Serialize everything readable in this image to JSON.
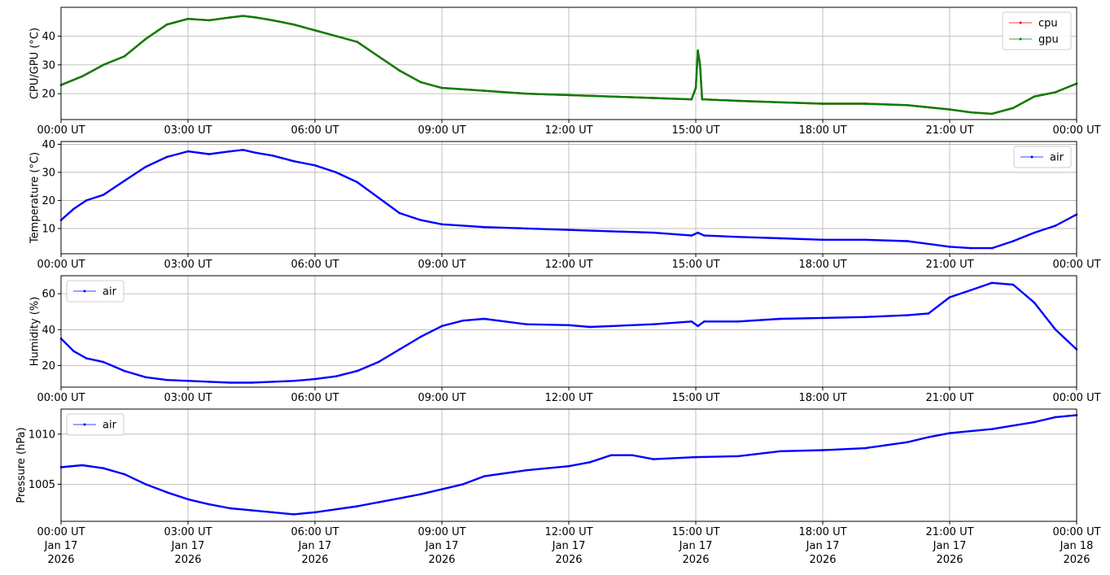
{
  "chart_data": [
    {
      "type": "line",
      "ylabel": "CPU/GPU (°C)",
      "ylim": [
        11,
        50
      ],
      "yticks": [
        20,
        30,
        40
      ],
      "xticks": [
        "00:00 UT",
        "03:00 UT",
        "06:00 UT",
        "09:00 UT",
        "12:00 UT",
        "15:00 UT",
        "18:00 UT",
        "21:00 UT",
        "00:00 UT"
      ],
      "xlim_hours": [
        0,
        24
      ],
      "grid": true,
      "legend_position": "top-right",
      "series": [
        {
          "name": "cpu",
          "color": "#ff0000",
          "x_hours": [
            0,
            0.5,
            1,
            1.5,
            2,
            2.5,
            3,
            3.5,
            4,
            4.3,
            4.6,
            5,
            5.5,
            6,
            6.5,
            7,
            7.5,
            8,
            8.5,
            9,
            10,
            11,
            12,
            13,
            14,
            14.9,
            15.0,
            15.05,
            15.1,
            15.15,
            15.2,
            16,
            17,
            18,
            19,
            20,
            21,
            21.5,
            22,
            22.5,
            23,
            23.5,
            24
          ],
          "values": [
            23,
            26,
            30,
            33,
            39,
            44,
            46,
            45.5,
            46.5,
            47,
            46.5,
            45.5,
            44,
            42,
            40,
            38,
            33,
            28,
            24,
            22,
            21,
            20,
            19.5,
            19,
            18.5,
            18,
            22,
            35,
            30,
            18,
            18,
            17.5,
            17,
            16.5,
            16.5,
            16,
            14.5,
            13.5,
            13,
            15,
            19,
            20.5,
            23.5
          ]
        },
        {
          "name": "gpu",
          "color": "#008000",
          "x_hours": [
            0,
            0.5,
            1,
            1.5,
            2,
            2.5,
            3,
            3.5,
            4,
            4.3,
            4.6,
            5,
            5.5,
            6,
            6.5,
            7,
            7.5,
            8,
            8.5,
            9,
            10,
            11,
            12,
            13,
            14,
            14.9,
            15.0,
            15.05,
            15.1,
            15.15,
            15.2,
            16,
            17,
            18,
            19,
            20,
            21,
            21.5,
            22,
            22.5,
            23,
            23.5,
            24
          ],
          "values": [
            23,
            26,
            30,
            33,
            39,
            44,
            46,
            45.5,
            46.5,
            47,
            46.5,
            45.5,
            44,
            42,
            40,
            38,
            33,
            28,
            24,
            22,
            21,
            20,
            19.5,
            19,
            18.5,
            18,
            22,
            35,
            30,
            18,
            18,
            17.5,
            17,
            16.5,
            16.5,
            16,
            14.5,
            13.5,
            13,
            15,
            19,
            20.5,
            23.5
          ]
        }
      ]
    },
    {
      "type": "line",
      "ylabel": "Temperature (°C)",
      "ylim": [
        1,
        41
      ],
      "yticks": [
        10,
        20,
        30,
        40
      ],
      "xticks": [
        "00:00 UT",
        "03:00 UT",
        "06:00 UT",
        "09:00 UT",
        "12:00 UT",
        "15:00 UT",
        "18:00 UT",
        "21:00 UT",
        "00:00 UT"
      ],
      "xlim_hours": [
        0,
        24
      ],
      "grid": true,
      "legend_position": "top-right",
      "series": [
        {
          "name": "air",
          "color": "#0000ff",
          "x_hours": [
            0,
            0.3,
            0.6,
            1,
            1.5,
            2,
            2.5,
            3,
            3.5,
            4,
            4.3,
            4.6,
            5,
            5.5,
            6,
            6.5,
            7,
            7.5,
            8,
            8.5,
            9,
            10,
            11,
            12,
            13,
            14,
            14.9,
            15.05,
            15.2,
            16,
            17,
            18,
            19,
            20,
            21,
            21.5,
            22,
            22.5,
            23,
            23.5,
            24
          ],
          "values": [
            13,
            17,
            20,
            22,
            27,
            32,
            35.5,
            37.5,
            36.5,
            37.5,
            38,
            37,
            36,
            34,
            32.5,
            30,
            26.5,
            21,
            15.5,
            13,
            11.5,
            10.5,
            10,
            9.5,
            9,
            8.5,
            7.5,
            8.5,
            7.5,
            7,
            6.5,
            6,
            6,
            5.5,
            3.5,
            3,
            3,
            5.5,
            8.5,
            11,
            15
          ]
        }
      ]
    },
    {
      "type": "line",
      "ylabel": "Humidity (%)",
      "ylim": [
        8,
        70
      ],
      "yticks": [
        20,
        40,
        60
      ],
      "xticks": [
        "00:00 UT",
        "03:00 UT",
        "06:00 UT",
        "09:00 UT",
        "12:00 UT",
        "15:00 UT",
        "18:00 UT",
        "21:00 UT",
        "00:00 UT"
      ],
      "xlim_hours": [
        0,
        24
      ],
      "grid": true,
      "legend_position": "top-left",
      "series": [
        {
          "name": "air",
          "color": "#0000ff",
          "x_hours": [
            0,
            0.3,
            0.6,
            1,
            1.5,
            2,
            2.5,
            3,
            3.5,
            4,
            4.5,
            5,
            5.5,
            6,
            6.5,
            7,
            7.5,
            8,
            8.5,
            9,
            9.5,
            10,
            11,
            12,
            12.5,
            13,
            14,
            14.9,
            15.05,
            15.2,
            16,
            17,
            18,
            19,
            20,
            20.5,
            21,
            21.5,
            22,
            22.5,
            23,
            23.5,
            24
          ],
          "values": [
            35,
            28,
            24,
            22,
            17,
            13.5,
            12,
            11.5,
            11,
            10.5,
            10.5,
            11,
            11.5,
            12.5,
            14,
            17,
            22,
            29,
            36,
            42,
            45,
            46,
            43,
            42.5,
            41.5,
            42,
            43,
            44.5,
            42,
            44.5,
            44.5,
            46,
            46.5,
            47,
            48,
            49,
            58,
            62,
            66,
            65,
            55,
            40,
            29
          ]
        }
      ]
    },
    {
      "type": "line",
      "ylabel": "Pressure (hPa)",
      "ylim": [
        1001.3,
        1012.5
      ],
      "yticks": [
        1005,
        1010
      ],
      "xticks": [
        "00:00 UT",
        "03:00 UT",
        "06:00 UT",
        "09:00 UT",
        "12:00 UT",
        "15:00 UT",
        "18:00 UT",
        "21:00 UT",
        "00:00 UT"
      ],
      "xtick_dates": [
        "Jan 17",
        "Jan 17",
        "Jan 17",
        "Jan 17",
        "Jan 17",
        "Jan 17",
        "Jan 17",
        "Jan 17",
        "Jan 18"
      ],
      "xtick_years": [
        "2026",
        "2026",
        "2026",
        "2026",
        "2026",
        "2026",
        "2026",
        "2026",
        "2026"
      ],
      "xlim_hours": [
        0,
        24
      ],
      "grid": true,
      "legend_position": "top-left",
      "series": [
        {
          "name": "air",
          "color": "#0000ff",
          "x_hours": [
            0,
            0.5,
            1,
            1.5,
            2,
            2.5,
            3,
            3.5,
            4,
            4.5,
            5,
            5.5,
            6,
            6.5,
            7,
            7.5,
            8,
            8.5,
            9,
            9.5,
            10,
            11,
            12,
            12.5,
            13,
            13.5,
            14,
            15,
            16,
            17,
            18,
            19,
            20,
            20.5,
            21,
            22,
            23,
            23.5,
            24
          ],
          "values": [
            1006.7,
            1006.9,
            1006.6,
            1006.0,
            1005.0,
            1004.2,
            1003.5,
            1003.0,
            1002.6,
            1002.4,
            1002.2,
            1002.0,
            1002.2,
            1002.5,
            1002.8,
            1003.2,
            1003.6,
            1004.0,
            1004.5,
            1005.0,
            1005.8,
            1006.4,
            1006.8,
            1007.2,
            1007.9,
            1007.9,
            1007.5,
            1007.7,
            1007.8,
            1008.3,
            1008.4,
            1008.6,
            1009.2,
            1009.7,
            1010.1,
            1010.5,
            1011.2,
            1011.7,
            1011.9
          ]
        }
      ]
    }
  ]
}
